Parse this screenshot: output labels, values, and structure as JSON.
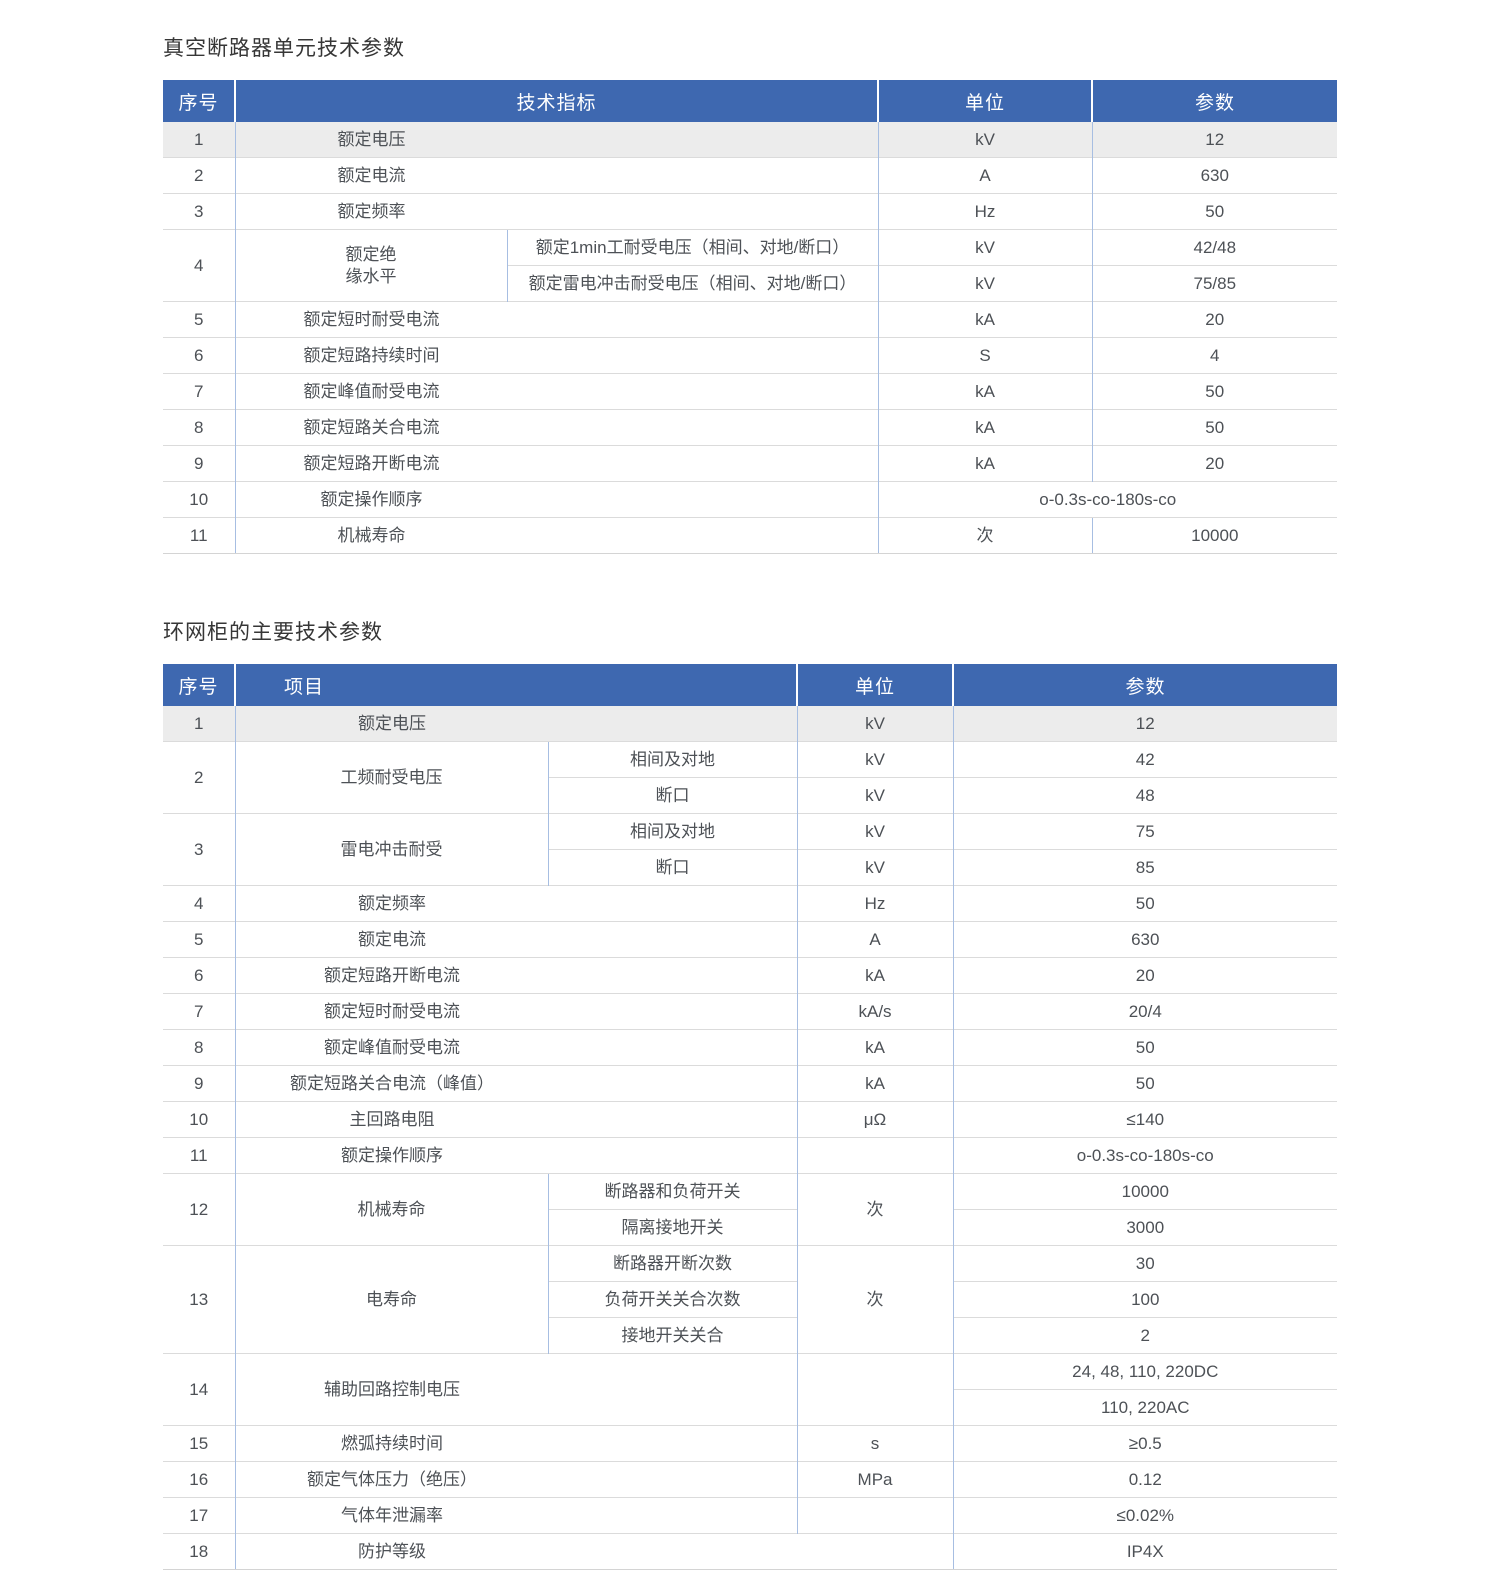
{
  "colors": {
    "header_bg": "#3e68b0",
    "header_text": "#ffffff",
    "shaded_row_bg": "#ececec",
    "vertical_border": "#a7bee2",
    "horizontal_border": "#dbdbdb",
    "body_text": "#4d5156",
    "title_text": "#363636"
  },
  "table1": {
    "title": "真空断路器单元技术参数",
    "headers": {
      "no": "序号",
      "item": "技术指标",
      "unit": "单位",
      "param": "参数"
    },
    "rows": [
      {
        "no": "1",
        "item": "额定电压",
        "unit": "kV",
        "param": "12",
        "shaded": true
      },
      {
        "no": "2",
        "item": "额定电流",
        "unit": "A",
        "param": "630"
      },
      {
        "no": "3",
        "item": "额定频率",
        "unit": "Hz",
        "param": "50"
      },
      {
        "no": "4",
        "item": "额定绝\n缘水平",
        "subs": [
          {
            "label": "额定1min工耐受电压（相间、对地/断口）",
            "unit": "kV",
            "param": "42/48"
          },
          {
            "label": "额定雷电冲击耐受电压（相间、对地/断口）",
            "unit": "kV",
            "param": "75/85"
          }
        ]
      },
      {
        "no": "5",
        "item": "额定短时耐受电流",
        "unit": "kA",
        "param": "20"
      },
      {
        "no": "6",
        "item": "额定短路持续时间",
        "unit": "S",
        "param": "4"
      },
      {
        "no": "7",
        "item": "额定峰值耐受电流",
        "unit": "kA",
        "param": "50"
      },
      {
        "no": "8",
        "item": "额定短路关合电流",
        "unit": "kA",
        "param": "50"
      },
      {
        "no": "9",
        "item": "额定短路开断电流",
        "unit": "kA",
        "param": "20"
      },
      {
        "no": "10",
        "item": "额定操作顺序",
        "merged_param": "o-0.3s-co-180s-co"
      },
      {
        "no": "11",
        "item": "机械寿命",
        "unit": "次",
        "param": "10000"
      }
    ]
  },
  "table2": {
    "title": "环网柜的主要技术参数",
    "headers": {
      "no": "序号",
      "item": "项目",
      "unit": "单位",
      "param": "参数"
    },
    "rows": [
      {
        "no": "1",
        "item": "额定电压",
        "unit": "kV",
        "param": "12",
        "shaded": true
      },
      {
        "no": "2",
        "item": "工频耐受电压",
        "subs": [
          {
            "label": "相间及对地",
            "unit": "kV",
            "param": "42"
          },
          {
            "label": "断口",
            "unit": "kV",
            "param": "48"
          }
        ]
      },
      {
        "no": "3",
        "item": "雷电冲击耐受",
        "subs": [
          {
            "label": "相间及对地",
            "unit": "kV",
            "param": "75"
          },
          {
            "label": "断口",
            "unit": "kV",
            "param": "85"
          }
        ]
      },
      {
        "no": "4",
        "item": "额定频率",
        "unit": "Hz",
        "param": "50"
      },
      {
        "no": "5",
        "item": "额定电流",
        "unit": "A",
        "param": "630"
      },
      {
        "no": "6",
        "item": "额定短路开断电流",
        "unit": "kA",
        "param": "20"
      },
      {
        "no": "7",
        "item": "额定短时耐受电流",
        "unit": "kA/s",
        "param": "20/4"
      },
      {
        "no": "8",
        "item": "额定峰值耐受电流",
        "unit": "kA",
        "param": "50"
      },
      {
        "no": "9",
        "item": "额定短路关合电流（峰值）",
        "unit": "kA",
        "param": "50"
      },
      {
        "no": "10",
        "item": "主回路电阻",
        "unit": "μΩ",
        "param": "≤140"
      },
      {
        "no": "11",
        "item": "额定操作顺序",
        "unit": "",
        "param": "o-0.3s-co-180s-co"
      },
      {
        "no": "12",
        "item": "机械寿命",
        "shared_unit": "次",
        "subs": [
          {
            "label": "断路器和负荷开关",
            "param": "10000"
          },
          {
            "label": "隔离接地开关",
            "param": "3000"
          }
        ]
      },
      {
        "no": "13",
        "item": "电寿命",
        "shared_unit": "次",
        "subs": [
          {
            "label": "断路器开断次数",
            "param": "30"
          },
          {
            "label": "负荷开关关合次数",
            "param": "100"
          },
          {
            "label": "接地开关关合",
            "param": "2"
          }
        ]
      },
      {
        "no": "14",
        "item": "辅助回路控制电压",
        "unit": "",
        "params": [
          "24, 48, 110, 220DC",
          "110, 220AC"
        ]
      },
      {
        "no": "15",
        "item": "燃弧持续时间",
        "unit": "s",
        "param": "≥0.5"
      },
      {
        "no": "16",
        "item": "额定气体压力（绝压）",
        "unit": "MPa",
        "param": "0.12"
      },
      {
        "no": "17",
        "item": "气体年泄漏率",
        "unit": "",
        "param": "≤0.02%"
      },
      {
        "no": "18",
        "item": "防护等级",
        "item_span_unit": true,
        "param": "IP4X"
      }
    ]
  }
}
